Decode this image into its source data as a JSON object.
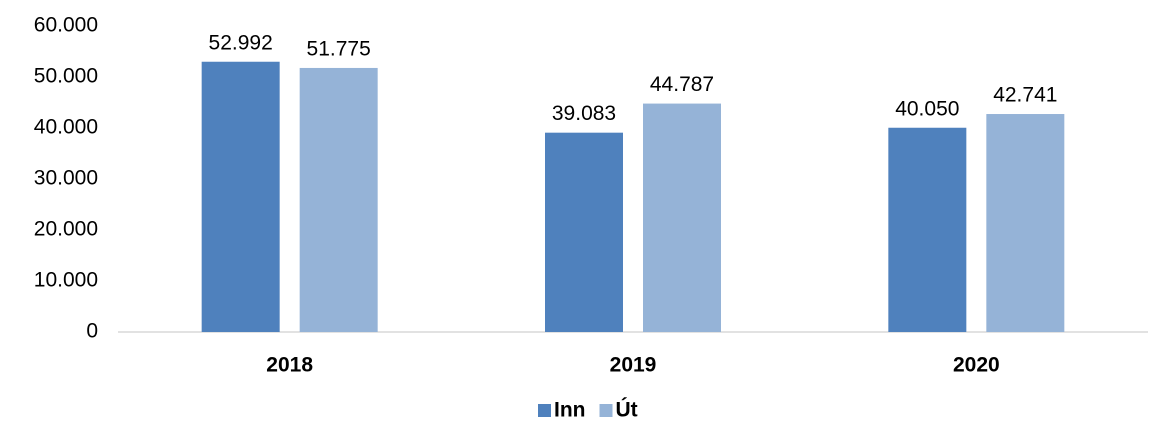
{
  "chart_data": {
    "type": "bar",
    "categories": [
      "2018",
      "2019",
      "2020"
    ],
    "series": [
      {
        "name": "Inn",
        "color": "#4f81bd",
        "values": [
          52992,
          39083,
          40050
        ],
        "value_labels": [
          "52.992",
          "39.083",
          "40.050"
        ]
      },
      {
        "name": "Út",
        "color": "#95b3d7",
        "values": [
          51775,
          44787,
          42741
        ],
        "value_labels": [
          "51.775",
          "44.787",
          "42.741"
        ]
      }
    ],
    "ylim": [
      0,
      60000
    ],
    "yticks": [
      0,
      {
        "value": 10000,
        "label": "10.000"
      },
      {
        "value": 20000,
        "label": "20.000"
      },
      {
        "value": 30000,
        "label": "30.000"
      },
      {
        "value": 40000,
        "label": "40.000"
      },
      {
        "value": 50000,
        "label": "50.000"
      },
      {
        "value": 60000,
        "label": "60.000"
      }
    ],
    "grid": false,
    "legend": "bottom"
  }
}
